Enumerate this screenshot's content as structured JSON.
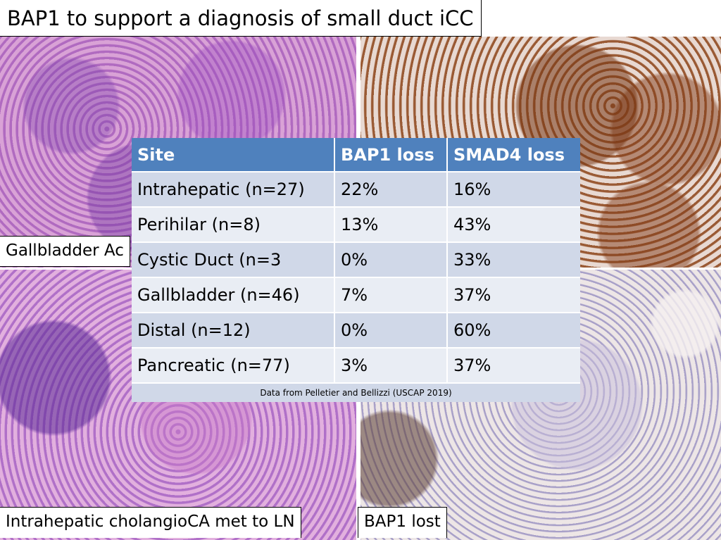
{
  "title": "BAP1 to support a diagnosis of small duct iCC",
  "captions": {
    "top_left": "Gallbladder Ac",
    "bottom_left": "Intrahepatic cholangioCA met to LN",
    "bottom_right": "BAP1 lost"
  },
  "table": {
    "headers": [
      "Site",
      "BAP1 loss",
      "SMAD4 loss"
    ],
    "rows": [
      [
        "Intrahepatic (n=27)",
        "22%",
        "16%"
      ],
      [
        "Perihilar (n=8)",
        "13%",
        "43%"
      ],
      [
        "Cystic Duct (n=3",
        "0%",
        "33%"
      ],
      [
        "Gallbladder (n=46)",
        "7%",
        "37%"
      ],
      [
        "Distal (n=12)",
        "0%",
        "60%"
      ],
      [
        "Pancreatic (n=77)",
        "3%",
        "37%"
      ]
    ],
    "source": "Data from Pelletier and Bellizzi (USCAP 2019)"
  },
  "colors": {
    "header": "#4f81bd",
    "row_dark": "#d0d8e8",
    "row_light": "#e9edf4"
  }
}
